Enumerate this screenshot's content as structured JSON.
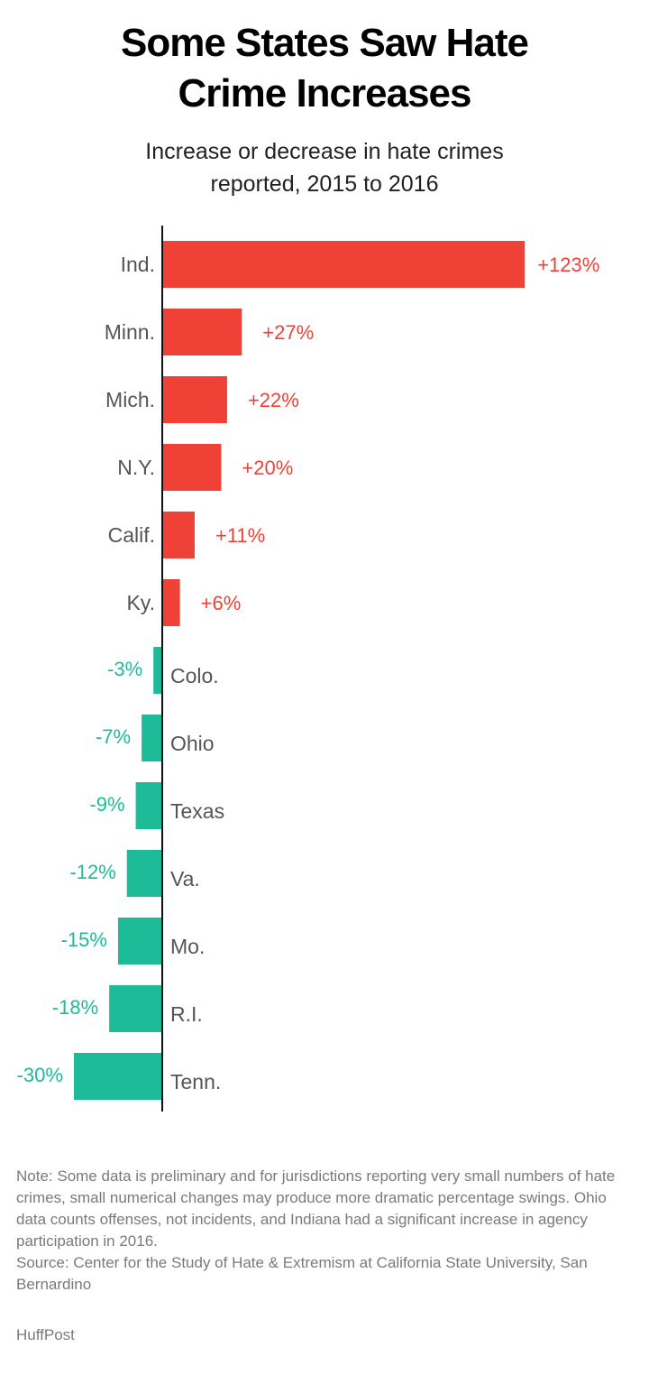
{
  "title_lines": [
    "Some States Saw Hate",
    "Crime Increases"
  ],
  "subtitle_lines": [
    "Increase or decrease in hate crimes",
    "reported, 2015 to 2016"
  ],
  "chart_data": {
    "type": "bar",
    "orientation": "horizontal",
    "title": "Some States Saw Hate Crime Increases",
    "subtitle": "Increase or decrease in hate crimes reported, 2015 to 2016",
    "xlabel": "",
    "ylabel": "",
    "unit": "%",
    "grid": false,
    "legend": "none",
    "xlim": [
      -30,
      123
    ],
    "categories": [
      "Ind.",
      "Minn.",
      "Mich.",
      "N.Y.",
      "Calif.",
      "Ky.",
      "Colo.",
      "Ohio",
      "Texas",
      "Va.",
      "Mo.",
      "R.I.",
      "Tenn."
    ],
    "values": [
      123,
      27,
      22,
      20,
      11,
      6,
      -3,
      -7,
      -9,
      -12,
      -15,
      -18,
      -30
    ],
    "data_labels": [
      "+123%",
      "+27%",
      "+22%",
      "+20%",
      "+11%",
      "+6%",
      "-3%",
      "-7%",
      "-9%",
      "-12%",
      "-15%",
      "-18%",
      "-30%"
    ],
    "colors": {
      "positive": "#ef4135",
      "negative": "#1dbb97",
      "category_label": "#555555",
      "axis": "#111111"
    }
  },
  "notes": [
    "Note: Some data is preliminary and for jurisdictions reporting very small numbers of hate crimes, small numerical changes may produce more dramatic percentage swings. Ohio data counts offenses, not incidents, and Indiana had a significant increase in agency participation in 2016.",
    "Source: Center for the Study of Hate & Extremism at California State University, San Bernardino"
  ],
  "brand": "HuffPost"
}
